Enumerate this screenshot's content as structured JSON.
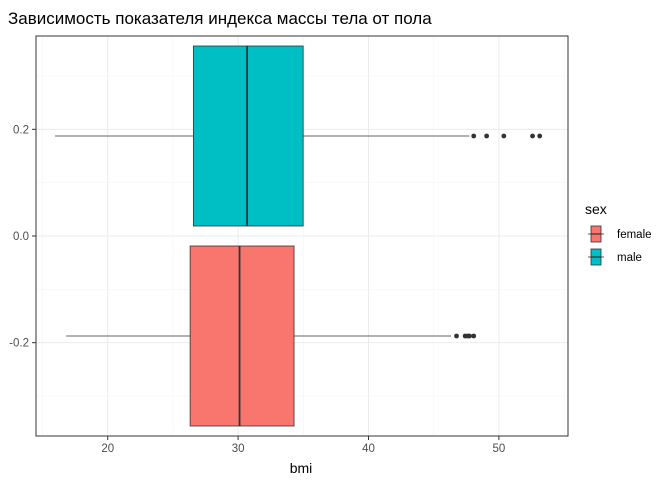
{
  "chart_data": {
    "type": "boxplot",
    "orientation": "horizontal",
    "title": "Зависимость показателя индекса массы тела от пола",
    "xlabel": "bmi",
    "ylabel": "",
    "xlim": [
      14.5,
      55.3
    ],
    "ylim": [
      -0.375,
      0.375
    ],
    "x_ticks": [
      20,
      30,
      40,
      50
    ],
    "x_tick_labels": [
      "20",
      "30",
      "40",
      "50"
    ],
    "y_ticks": [
      0.2,
      0.0,
      -0.2
    ],
    "y_tick_labels": [
      "0.2",
      "0.0",
      "-0.2"
    ],
    "grid": true,
    "legend": {
      "title": "sex",
      "placement": "right",
      "entries": [
        "female",
        "male"
      ]
    },
    "series": [
      {
        "name": "male",
        "color": "#00BFC4",
        "y_center": 0.1875,
        "y_halfwidth": 0.16875,
        "whisker_low": 15.96,
        "q1": 26.57,
        "median": 30.69,
        "q3": 34.99,
        "whisker_high": 47.74,
        "outliers": [
          48.07,
          49.06,
          50.38,
          52.58,
          53.13
        ]
      },
      {
        "name": "female",
        "color": "#F8766D",
        "y_center": -0.1875,
        "y_halfwidth": 0.16875,
        "whisker_low": 16.82,
        "q1": 26.32,
        "median": 30.11,
        "q3": 34.29,
        "whisker_high": 46.34,
        "outliers": [
          46.75,
          47.41,
          47.6,
          47.74,
          48.07
        ]
      }
    ],
    "colors": {
      "panel_border": "#333333",
      "grid_major": "#ebebeb",
      "grid_minor": "#f5f5f5",
      "box_stroke": "#333333"
    }
  }
}
